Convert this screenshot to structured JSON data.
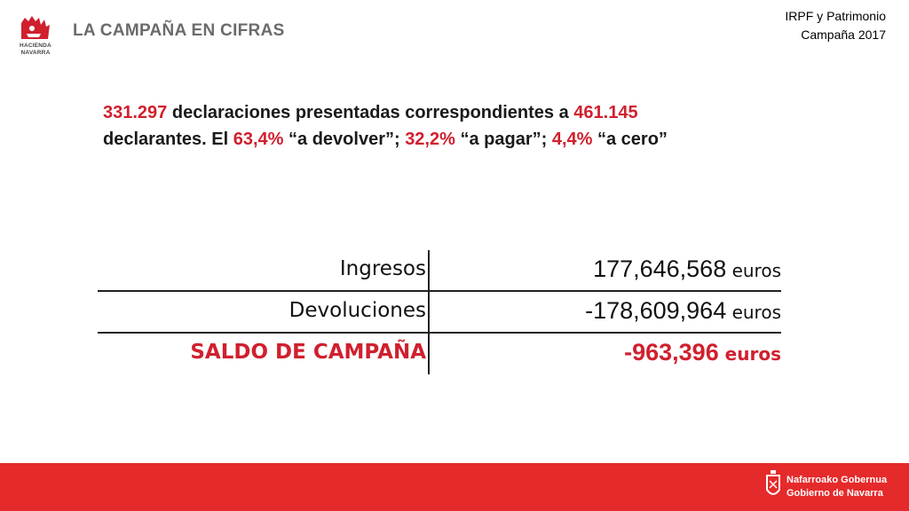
{
  "header": {
    "logo_text": [
      "HACIENDA",
      "NAVARRA"
    ],
    "section_title": "LA CAMPAÑA EN CIFRAS",
    "top_right": {
      "line1": "IRPF y Patrimonio",
      "line2": "Campaña 2017"
    }
  },
  "summary": {
    "num_declaraciones": "331.297",
    "text1": " declaraciones presentadas correspondientes a ",
    "num_declarantes": "461.145",
    "text2": "declarantes. El ",
    "pct_devolver": "63,4%",
    "text3": " “a devolver”; ",
    "pct_pagar": "32,2%",
    "text4": " “a pagar”; ",
    "pct_cero": "4,4%",
    "text5": " “a cero”"
  },
  "table": {
    "rows": [
      {
        "label": "Ingresos",
        "value": "177,646,568",
        "unit": " euros"
      },
      {
        "label": "Devoluciones",
        "value": "-178,609,964",
        "unit": " euros"
      },
      {
        "label": "SALDO DE CAMPAÑA",
        "value": "-963,396",
        "unit": " euros"
      }
    ]
  },
  "footer": {
    "line1": "Nafarroako Gobernua",
    "line2": "Gobierno de Navarra"
  },
  "colors": {
    "accent": "#d0202e",
    "footer_bg": "#e52a2b",
    "title_gray": "#6b6b6b"
  }
}
